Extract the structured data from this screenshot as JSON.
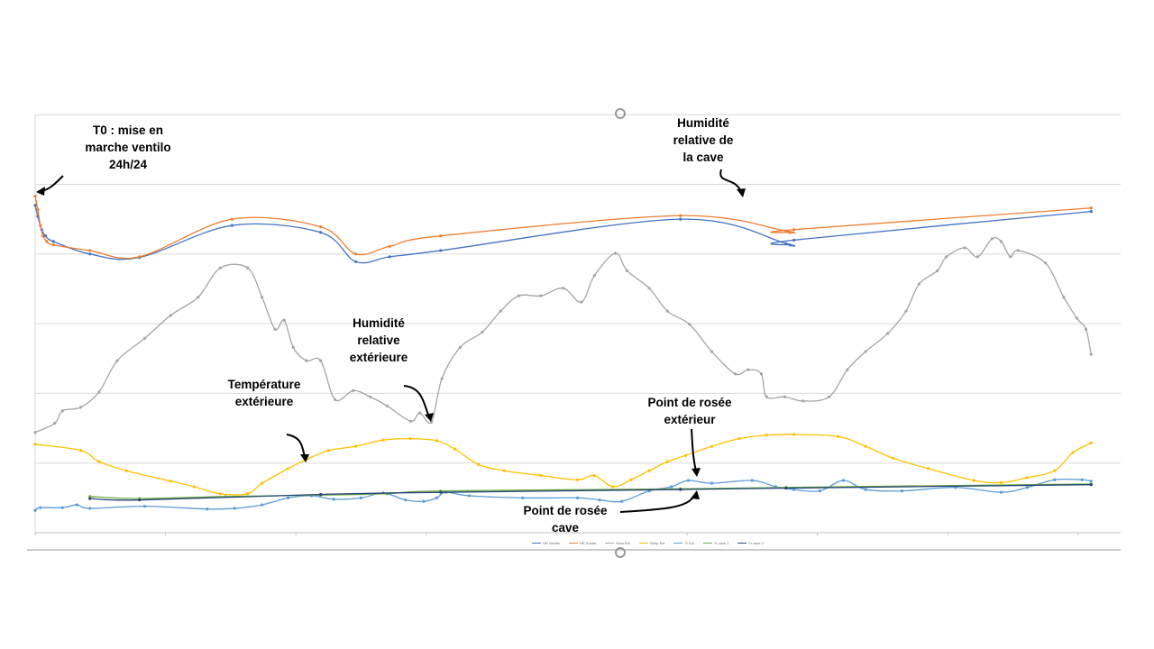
{
  "chart_data": {
    "type": "line",
    "title": "",
    "xlabel": "",
    "ylabel": "",
    "xlim": [
      0,
      8.3
    ],
    "ylim": [
      0,
      6
    ],
    "grid": true,
    "legend_position": "bottom",
    "series": [
      {
        "name": "HR Ventilo",
        "color": "#4472C4",
        "points": [
          [
            0,
            4.7
          ],
          [
            0.02,
            4.54
          ],
          [
            0.05,
            4.35
          ],
          [
            0.08,
            4.26
          ],
          [
            0.14,
            4.18
          ],
          [
            0.42,
            4.0
          ],
          [
            0.8,
            3.95
          ],
          [
            1.51,
            4.41
          ],
          [
            2.19,
            4.31
          ],
          [
            2.46,
            3.89
          ],
          [
            2.72,
            3.96
          ],
          [
            3.11,
            4.05
          ],
          [
            4.95,
            4.5
          ],
          [
            5.76,
            4.15
          ],
          [
            5.79,
            4.13
          ],
          [
            5.82,
            4.2
          ],
          [
            8.1,
            4.61
          ]
        ]
      },
      {
        "name": "HR Sonde",
        "color": "#ED7D31",
        "points": [
          [
            0,
            4.83
          ],
          [
            0.02,
            4.64
          ],
          [
            0.04,
            4.41
          ],
          [
            0.06,
            4.26
          ],
          [
            0.09,
            4.18
          ],
          [
            0.14,
            4.13
          ],
          [
            0.42,
            4.05
          ],
          [
            0.8,
            3.96
          ],
          [
            1.51,
            4.5
          ],
          [
            2.19,
            4.39
          ],
          [
            2.46,
            4.0
          ],
          [
            2.72,
            4.11
          ],
          [
            3.11,
            4.26
          ],
          [
            4.95,
            4.55
          ],
          [
            5.76,
            4.33
          ],
          [
            5.79,
            4.31
          ],
          [
            5.82,
            4.35
          ],
          [
            8.1,
            4.66
          ]
        ]
      },
      {
        "name": "Hum Ext",
        "color": "#A5A5A5",
        "points": [
          [
            0,
            1.44
          ],
          [
            0.15,
            1.57
          ],
          [
            0.21,
            1.75
          ],
          [
            0.35,
            1.8
          ],
          [
            0.49,
            2.02
          ],
          [
            0.63,
            2.47
          ],
          [
            0.84,
            2.79
          ],
          [
            1.04,
            3.12
          ],
          [
            1.25,
            3.38
          ],
          [
            1.42,
            3.8
          ],
          [
            1.63,
            3.8
          ],
          [
            1.74,
            3.38
          ],
          [
            1.84,
            2.92
          ],
          [
            1.91,
            3.05
          ],
          [
            1.98,
            2.66
          ],
          [
            2.08,
            2.47
          ],
          [
            2.19,
            2.47
          ],
          [
            2.3,
            1.91
          ],
          [
            2.44,
            2.04
          ],
          [
            2.57,
            1.95
          ],
          [
            2.7,
            1.82
          ],
          [
            2.88,
            1.6
          ],
          [
            2.95,
            1.72
          ],
          [
            3.04,
            1.59
          ],
          [
            3.12,
            2.21
          ],
          [
            3.26,
            2.66
          ],
          [
            3.43,
            2.88
          ],
          [
            3.57,
            3.18
          ],
          [
            3.71,
            3.4
          ],
          [
            3.88,
            3.4
          ],
          [
            4.05,
            3.51
          ],
          [
            4.19,
            3.31
          ],
          [
            4.29,
            3.69
          ],
          [
            4.45,
            4.01
          ],
          [
            4.54,
            3.76
          ],
          [
            4.71,
            3.51
          ],
          [
            4.85,
            3.18
          ],
          [
            5.02,
            2.99
          ],
          [
            5.19,
            2.6
          ],
          [
            5.37,
            2.28
          ],
          [
            5.47,
            2.34
          ],
          [
            5.57,
            2.28
          ],
          [
            5.61,
            1.95
          ],
          [
            5.75,
            1.95
          ],
          [
            5.89,
            1.89
          ],
          [
            6.09,
            1.95
          ],
          [
            6.23,
            2.34
          ],
          [
            6.37,
            2.6
          ],
          [
            6.54,
            2.86
          ],
          [
            6.68,
            3.18
          ],
          [
            6.78,
            3.57
          ],
          [
            6.92,
            3.76
          ],
          [
            6.99,
            3.96
          ],
          [
            7.13,
            4.09
          ],
          [
            7.23,
            3.96
          ],
          [
            7.34,
            4.22
          ],
          [
            7.41,
            4.18
          ],
          [
            7.48,
            3.96
          ],
          [
            7.54,
            4.05
          ],
          [
            7.75,
            3.87
          ],
          [
            7.89,
            3.38
          ],
          [
            7.99,
            3.08
          ],
          [
            8.06,
            2.92
          ],
          [
            8.1,
            2.56
          ]
        ]
      },
      {
        "name": "Temp Ext",
        "color": "#FFC000",
        "points": [
          [
            0,
            1.27
          ],
          [
            0.35,
            1.18
          ],
          [
            0.49,
            1.02
          ],
          [
            0.7,
            0.89
          ],
          [
            1.04,
            0.74
          ],
          [
            1.22,
            0.66
          ],
          [
            1.42,
            0.56
          ],
          [
            1.63,
            0.56
          ],
          [
            1.74,
            0.71
          ],
          [
            1.94,
            0.92
          ],
          [
            2.08,
            1.05
          ],
          [
            2.25,
            1.18
          ],
          [
            2.46,
            1.24
          ],
          [
            2.67,
            1.33
          ],
          [
            2.88,
            1.35
          ],
          [
            3.08,
            1.32
          ],
          [
            3.22,
            1.2
          ],
          [
            3.4,
            0.98
          ],
          [
            3.6,
            0.89
          ],
          [
            3.88,
            0.82
          ],
          [
            4.16,
            0.76
          ],
          [
            4.29,
            0.82
          ],
          [
            4.43,
            0.66
          ],
          [
            4.57,
            0.76
          ],
          [
            4.71,
            0.89
          ],
          [
            4.85,
            1.02
          ],
          [
            4.99,
            1.11
          ],
          [
            5.19,
            1.24
          ],
          [
            5.4,
            1.35
          ],
          [
            5.61,
            1.4
          ],
          [
            5.82,
            1.41
          ],
          [
            6.16,
            1.38
          ],
          [
            6.37,
            1.24
          ],
          [
            6.58,
            1.07
          ],
          [
            6.85,
            0.92
          ],
          [
            7.2,
            0.75
          ],
          [
            7.41,
            0.72
          ],
          [
            7.61,
            0.79
          ],
          [
            7.82,
            0.89
          ],
          [
            7.96,
            1.15
          ],
          [
            8.1,
            1.29
          ]
        ]
      },
      {
        "name": "Tr Ext",
        "color": "#5B9BD5",
        "points": [
          [
            0,
            0.32
          ],
          [
            0.04,
            0.36
          ],
          [
            0.21,
            0.36
          ],
          [
            0.32,
            0.4
          ],
          [
            0.42,
            0.35
          ],
          [
            0.84,
            0.38
          ],
          [
            1.32,
            0.34
          ],
          [
            1.53,
            0.35
          ],
          [
            1.74,
            0.4
          ],
          [
            1.94,
            0.5
          ],
          [
            2.12,
            0.53
          ],
          [
            2.29,
            0.48
          ],
          [
            2.5,
            0.5
          ],
          [
            2.67,
            0.57
          ],
          [
            2.84,
            0.47
          ],
          [
            2.98,
            0.45
          ],
          [
            3.08,
            0.5
          ],
          [
            3.15,
            0.58
          ],
          [
            3.33,
            0.53
          ],
          [
            3.74,
            0.5
          ],
          [
            4.16,
            0.5
          ],
          [
            4.33,
            0.47
          ],
          [
            4.5,
            0.45
          ],
          [
            4.71,
            0.6
          ],
          [
            4.88,
            0.66
          ],
          [
            5.01,
            0.75
          ],
          [
            5.19,
            0.71
          ],
          [
            5.5,
            0.75
          ],
          [
            5.68,
            0.66
          ],
          [
            5.82,
            0.62
          ],
          [
            6.02,
            0.6
          ],
          [
            6.2,
            0.75
          ],
          [
            6.37,
            0.62
          ],
          [
            6.65,
            0.6
          ],
          [
            7.06,
            0.65
          ],
          [
            7.41,
            0.58
          ],
          [
            7.61,
            0.65
          ],
          [
            7.82,
            0.76
          ],
          [
            8.03,
            0.76
          ],
          [
            8.1,
            0.74
          ]
        ]
      },
      {
        "name": "Tr cave 1",
        "color": "#70AD47",
        "points": [
          [
            0.42,
            0.52
          ],
          [
            0.8,
            0.49
          ],
          [
            1.46,
            0.52
          ],
          [
            2.19,
            0.54
          ],
          [
            2.7,
            0.56
          ],
          [
            3.11,
            0.6
          ],
          [
            4.95,
            0.63
          ],
          [
            5.76,
            0.65
          ],
          [
            8.1,
            0.7
          ]
        ]
      },
      {
        "name": "Tr cave 2",
        "color": "#264478",
        "points": [
          [
            0.42,
            0.49
          ],
          [
            0.8,
            0.47
          ],
          [
            2.19,
            0.55
          ],
          [
            3.11,
            0.58
          ],
          [
            4.95,
            0.62
          ],
          [
            5.76,
            0.64
          ],
          [
            8.1,
            0.69
          ]
        ]
      }
    ],
    "annotations": [
      {
        "id": "t0",
        "text": "T0 : mise en marche ventilo 24h/24",
        "lines": [
          "T0 : mise en",
          "marche ventilo",
          "24h/24"
        ]
      },
      {
        "id": "hr-cave",
        "text": "Humidité relative de la cave",
        "lines": [
          "Humidité",
          "relative de",
          "la cave"
        ]
      },
      {
        "id": "hr-ext",
        "text": "Humidité relative extérieure",
        "lines": [
          "Humidité",
          "relative",
          "extérieure"
        ]
      },
      {
        "id": "temp-ext",
        "text": "Température extérieure",
        "lines": [
          "Température",
          "extérieure"
        ]
      },
      {
        "id": "dew-ext",
        "text": "Point de rosée extérieur",
        "lines": [
          "Point de rosée",
          "extérieur"
        ]
      },
      {
        "id": "dew-cave",
        "text": "Point de rosée cave",
        "lines": [
          "Point de rosée",
          "cave"
        ]
      }
    ]
  }
}
